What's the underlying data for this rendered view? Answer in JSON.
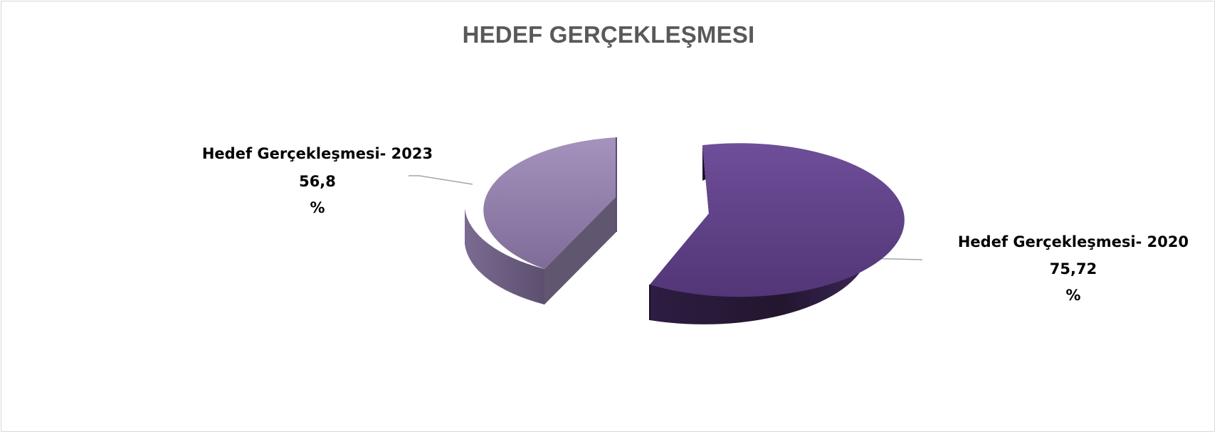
{
  "chart_data": {
    "type": "pie",
    "title": "HEDEF GERÇEKLEŞMESI",
    "categories": [
      "Hedef Gerçekleşmesi- 2020",
      "Hedef Gerçekleşmesi- 2023"
    ],
    "values": [
      75.72,
      56.8
    ],
    "value_labels": [
      "75,72",
      "56,8"
    ],
    "unit": "%",
    "legend": "none",
    "style": "3d-exploded",
    "colors": [
      "#5e3f86",
      "#9280ac"
    ]
  }
}
